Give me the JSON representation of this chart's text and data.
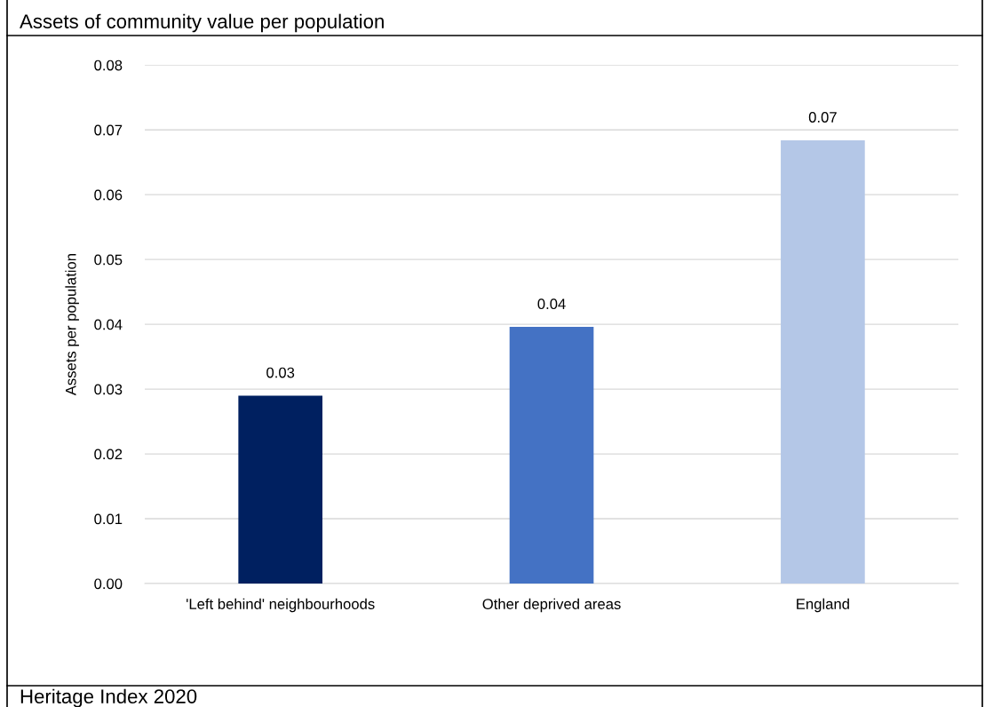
{
  "chart_data": {
    "type": "bar",
    "title": "Assets of community value per population",
    "ylabel": "Assets per population",
    "categories": [
      "'Left behind' neighbourhoods",
      "Other deprived areas",
      "England"
    ],
    "values": [
      0.029,
      0.0396,
      0.0684
    ],
    "colors": [
      "#002060",
      "#4472c4",
      "#b4c7e7"
    ],
    "value_labels": [
      "0.03",
      "0.04",
      "0.07"
    ],
    "ylim": [
      0,
      0.08
    ],
    "yticks": [
      {
        "value": 0,
        "label": "0.00"
      },
      {
        "value": 0.01,
        "label": "0.01"
      },
      {
        "value": 0.02,
        "label": "0.02"
      },
      {
        "value": 0.03,
        "label": "0.03"
      },
      {
        "value": 0.04,
        "label": "0.04"
      },
      {
        "value": 0.05,
        "label": "0.05"
      },
      {
        "value": 0.06,
        "label": "0.06"
      },
      {
        "value": 0.07,
        "label": "0.07"
      },
      {
        "value": 0.08,
        "label": "0.08"
      }
    ],
    "grid": "y",
    "annotations": [
      "Heritage Index 2020"
    ]
  }
}
